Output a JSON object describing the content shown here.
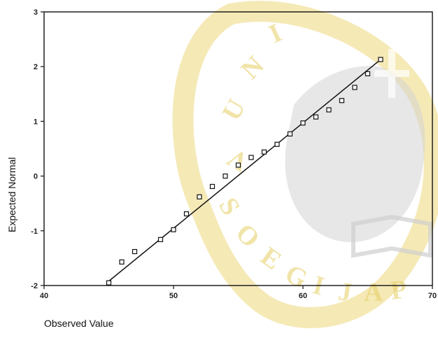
{
  "watermark": {
    "text": "UNIVERSITAS SOEGIJAPRANATA",
    "colors": {
      "gold": "#ecd46e",
      "gray": "#d4d4d4"
    }
  },
  "chart_data": {
    "type": "scatter",
    "title": "",
    "xlabel": "Observed Value",
    "ylabel": "Expected Normal",
    "xlim": [
      40,
      70
    ],
    "ylim": [
      -2,
      3
    ],
    "x_ticks": [
      40,
      50,
      60,
      70
    ],
    "y_ticks": [
      -2,
      -1,
      0,
      1,
      2,
      3
    ],
    "grid": false,
    "legend": "none",
    "series": [
      {
        "marker": "square",
        "x": [
          45,
          46,
          47,
          49,
          50,
          51,
          52,
          53,
          54,
          55,
          56,
          57,
          58,
          59,
          60,
          61,
          62,
          63,
          64,
          65,
          66
        ],
        "y": [
          -1.95,
          -1.57,
          -1.38,
          -1.16,
          -0.98,
          -0.69,
          -0.38,
          -0.19,
          0.0,
          0.2,
          0.34,
          0.44,
          0.58,
          0.77,
          0.97,
          1.08,
          1.21,
          1.38,
          1.62,
          1.87,
          2.13
        ]
      }
    ],
    "fit_line": {
      "x": [
        45,
        66
      ],
      "y": [
        -1.92,
        2.13
      ]
    }
  }
}
